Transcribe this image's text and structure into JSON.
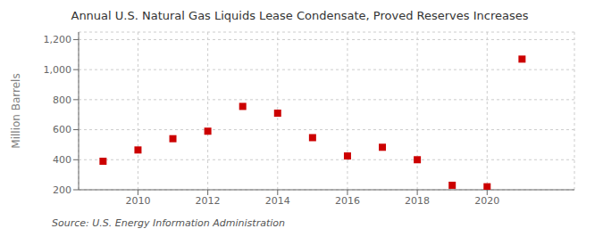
{
  "chart_data": {
    "type": "scatter",
    "title": "Annual U.S. Natural Gas Liquids Lease Condensate, Proved Reserves Increases",
    "y_label": "Million Barrels",
    "annotations": [
      "Source: U.S. Energy Information Administration"
    ],
    "x": [
      2009,
      2010,
      2011,
      2012,
      2013,
      2014,
      2015,
      2016,
      2017,
      2018,
      2019,
      2020,
      2021
    ],
    "values": [
      390,
      465,
      540,
      590,
      755,
      710,
      547,
      425,
      483,
      400,
      230,
      220,
      1070
    ],
    "color": "#cc0000",
    "marker": "square",
    "xlim": [
      2008.3,
      2022.5
    ],
    "xticks": [
      2010,
      2012,
      2014,
      2016,
      2018,
      2020
    ],
    "ylim": [
      200,
      1250
    ],
    "yticks": [
      200,
      400,
      600,
      800,
      {
        "value": 1000,
        "label": "1,000"
      },
      {
        "value": 1200,
        "label": "1,200"
      }
    ],
    "grid": true
  }
}
